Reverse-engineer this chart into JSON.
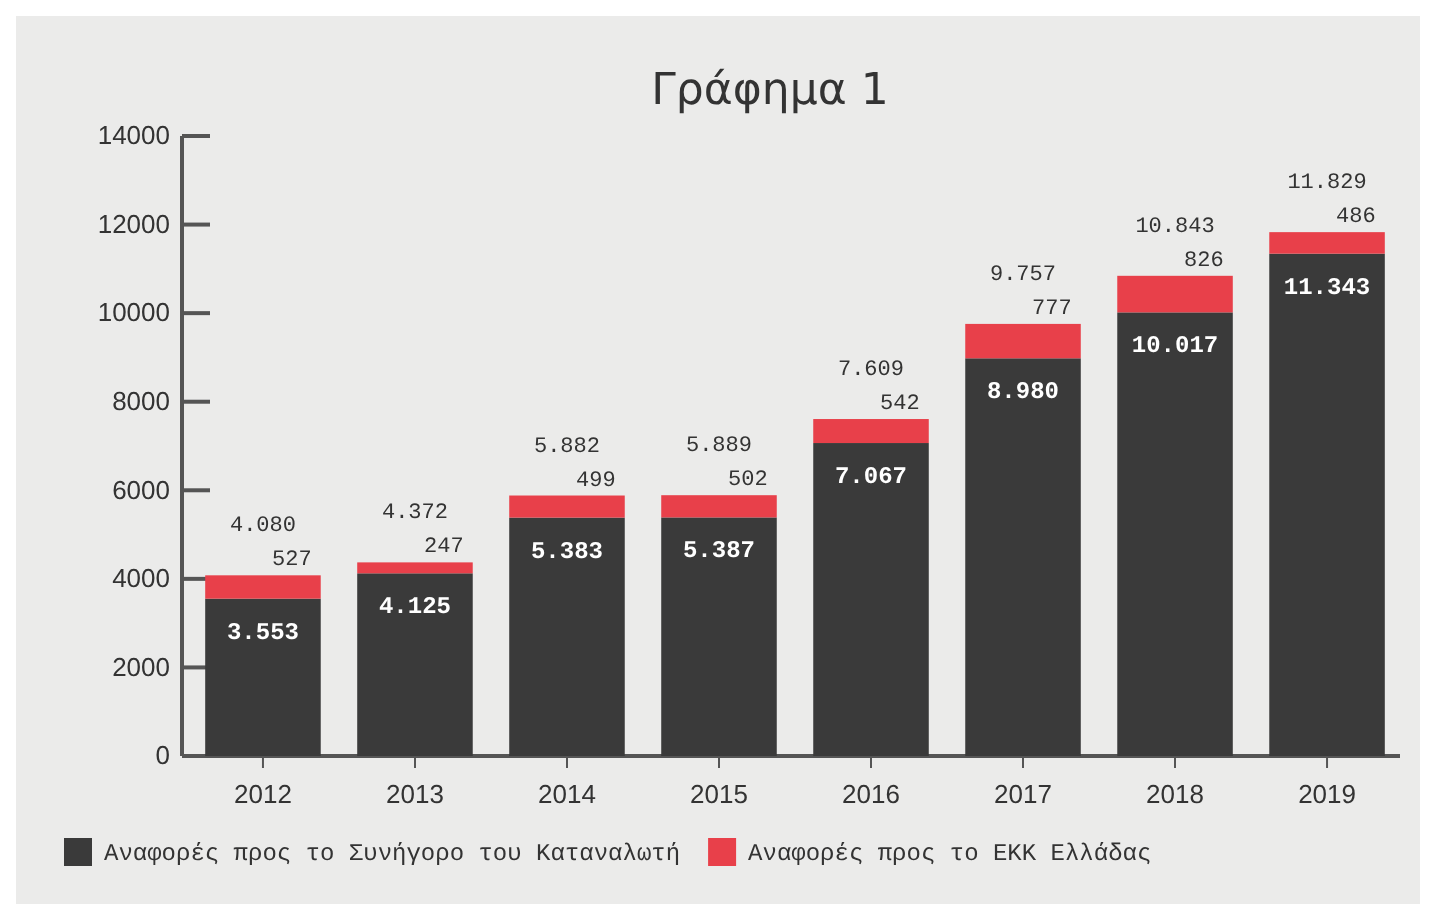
{
  "chart_data": {
    "type": "bar",
    "title": "Γράφημα 1",
    "stacked": true,
    "categories": [
      "2012",
      "2013",
      "2014",
      "2015",
      "2016",
      "2017",
      "2018",
      "2019"
    ],
    "series": [
      {
        "name": "Αναφορές προς το Συνήγορο του Καταναλωτή",
        "color": "#3a3a3a",
        "values": [
          3553,
          4125,
          5383,
          5387,
          7067,
          8980,
          10017,
          11343
        ],
        "value_labels": [
          "3.553",
          "4.125",
          "5.383",
          "5.387",
          "7.067",
          "8.980",
          "10.017",
          "11.343"
        ]
      },
      {
        "name": "Αναφορές προς το ΕΚΚ Ελλάδας",
        "color": "#e8404a",
        "values": [
          527,
          247,
          499,
          502,
          542,
          777,
          826,
          486
        ],
        "value_labels": [
          "527",
          "247",
          "499",
          "502",
          "542",
          "777",
          "826",
          "486"
        ]
      }
    ],
    "totals": [
      "4.080",
      "4.372",
      "5.882",
      "5.889",
      "7.609",
      "9.757",
      "10.843",
      "11.829"
    ],
    "ylim": [
      0,
      14000
    ],
    "yticks": [
      0,
      2000,
      4000,
      6000,
      8000,
      10000,
      12000,
      14000
    ],
    "grid": false,
    "legend": "bottom"
  }
}
